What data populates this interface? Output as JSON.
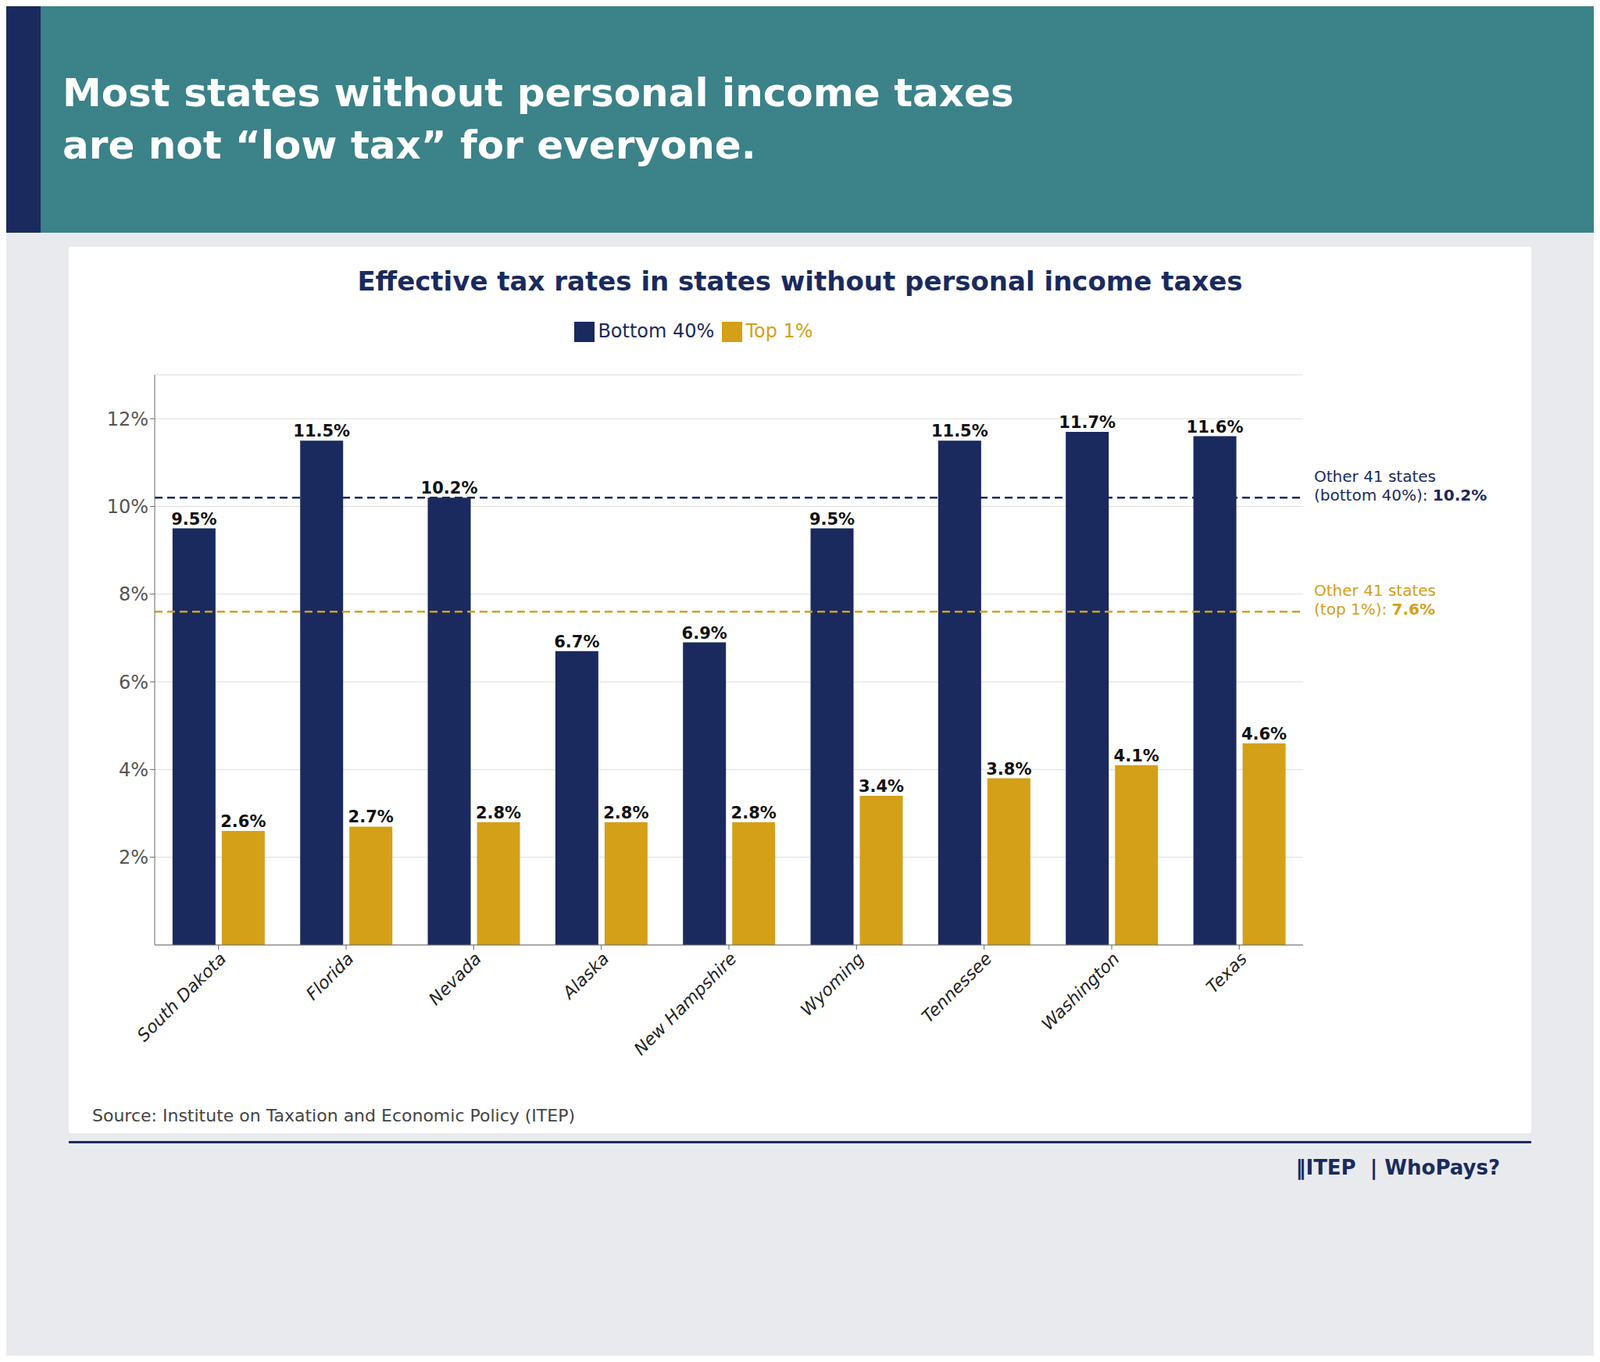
{
  "chart_data": {
    "type": "bar",
    "title": "Most states without personal income taxes\nare not “low tax” for everyone.",
    "subtitle": "Effective tax rates in states without personal income taxes",
    "categories": [
      "South Dakota",
      "Florida",
      "Nevada",
      "Alaska",
      "New Hampshire",
      "Wyoming",
      "Tennessee",
      "Washington",
      "Texas"
    ],
    "series": [
      {
        "name": "Bottom 40%",
        "color": "#1a2a5e",
        "values": [
          9.5,
          11.5,
          10.2,
          6.7,
          6.9,
          9.5,
          11.5,
          11.7,
          11.6
        ],
        "value_labels": [
          "9.5%",
          "11.5%",
          "10.2%",
          "6.7%",
          "6.9%",
          "9.5%",
          "11.5%",
          "11.7%",
          "11.6%"
        ]
      },
      {
        "name": "Top 1%",
        "color": "#d4a017",
        "values": [
          2.6,
          2.7,
          2.8,
          2.8,
          2.8,
          3.4,
          3.8,
          4.1,
          4.6
        ],
        "value_labels": [
          "2.6%",
          "2.7%",
          "2.8%",
          "2.8%",
          "2.8%",
          "3.4%",
          "3.8%",
          "4.1%",
          "4.6%"
        ]
      }
    ],
    "ylim": [
      0,
      13
    ],
    "yticks": [
      {
        "value": 2,
        "label": "2%"
      },
      {
        "value": 4,
        "label": "4%"
      },
      {
        "value": 6,
        "label": "6%"
      },
      {
        "value": 8,
        "label": "8%"
      },
      {
        "value": 10,
        "label": "10%"
      },
      {
        "value": 12,
        "label": "12%"
      }
    ],
    "grid": true,
    "data_labels": true,
    "annotations": [
      {
        "y": 10.2,
        "color": "#1a2a5e",
        "lines": [
          "Other 41 states",
          "(bottom 40%): "
        ],
        "value_label": "10.2%"
      },
      {
        "y": 7.6,
        "color": "#d4a017",
        "lines": [
          "Other 41 states",
          "(top 1%): "
        ],
        "value_label": "7.6%"
      }
    ],
    "source": "Source: Institute on Taxation and Economic Policy (ITEP)",
    "footer": "‖ITEP  | WhoPays?",
    "header_bg_color": "#3b8289",
    "header_stripe_color": "#1a2a5e",
    "header_text_color": "#ffffff",
    "body_bg_color": "#e8eaee",
    "chart_bg_color": "#ffffff",
    "dark_navy": "#1a2a5e"
  }
}
